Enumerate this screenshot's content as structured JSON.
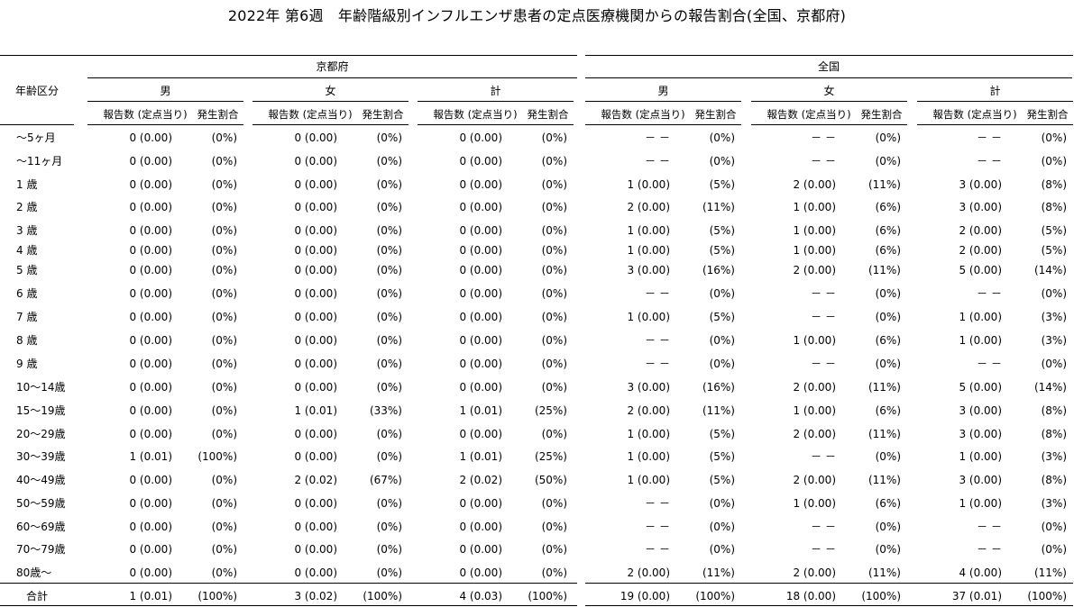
{
  "title": "2022年 第6週　年齢階級別インフルエンザ患者の定点医療機関からの報告割合(全国、京都府)",
  "header": {
    "age_label": "年齢区分",
    "regions": [
      "京都府",
      "全国"
    ],
    "sexes": [
      "男",
      "女",
      "計"
    ],
    "count_label": "報告数 (定点当り)",
    "ratio_label": "発生割合"
  },
  "rows": [
    {
      "age": "～5ヶ月",
      "kyoto": [
        [
          "0 (0.00)",
          "(0%)"
        ],
        [
          "0 (0.00)",
          "(0%)"
        ],
        [
          "0 (0.00)",
          "(0%)"
        ]
      ],
      "national": [
        [
          "－ －",
          "(0%)"
        ],
        [
          "－ －",
          "(0%)"
        ],
        [
          "－ －",
          "(0%)"
        ]
      ]
    },
    {
      "age": "～11ヶ月",
      "kyoto": [
        [
          "0 (0.00)",
          "(0%)"
        ],
        [
          "0 (0.00)",
          "(0%)"
        ],
        [
          "0 (0.00)",
          "(0%)"
        ]
      ],
      "national": [
        [
          "－ －",
          "(0%)"
        ],
        [
          "－ －",
          "(0%)"
        ],
        [
          "－ －",
          "(0%)"
        ]
      ]
    },
    {
      "age": "1 歳",
      "kyoto": [
        [
          "0 (0.00)",
          "(0%)"
        ],
        [
          "0 (0.00)",
          "(0%)"
        ],
        [
          "0 (0.00)",
          "(0%)"
        ]
      ],
      "national": [
        [
          "1 (0.00)",
          "(5%)"
        ],
        [
          "2 (0.00)",
          "(11%)"
        ],
        [
          "3 (0.00)",
          "(8%)"
        ]
      ]
    },
    {
      "age": "2 歳",
      "kyoto": [
        [
          "0 (0.00)",
          "(0%)"
        ],
        [
          "0 (0.00)",
          "(0%)"
        ],
        [
          "0 (0.00)",
          "(0%)"
        ]
      ],
      "national": [
        [
          "2 (0.00)",
          "(11%)"
        ],
        [
          "1 (0.00)",
          "(6%)"
        ],
        [
          "3 (0.00)",
          "(8%)"
        ]
      ]
    },
    {
      "age": "3 歳",
      "kyoto": [
        [
          "0 (0.00)",
          "(0%)"
        ],
        [
          "0 (0.00)",
          "(0%)"
        ],
        [
          "0 (0.00)",
          "(0%)"
        ]
      ],
      "national": [
        [
          "1 (0.00)",
          "(5%)"
        ],
        [
          "1 (0.00)",
          "(6%)"
        ],
        [
          "2 (0.00)",
          "(5%)"
        ]
      ]
    },
    {
      "age": "4 歳",
      "kyoto": [
        [
          "0 (0.00)",
          "(0%)"
        ],
        [
          "0 (0.00)",
          "(0%)"
        ],
        [
          "0 (0.00)",
          "(0%)"
        ]
      ],
      "national": [
        [
          "1 (0.00)",
          "(5%)"
        ],
        [
          "1 (0.00)",
          "(6%)"
        ],
        [
          "2 (0.00)",
          "(5%)"
        ]
      ]
    },
    {
      "age": "5 歳",
      "kyoto": [
        [
          "0 (0.00)",
          "(0%)"
        ],
        [
          "0 (0.00)",
          "(0%)"
        ],
        [
          "0 (0.00)",
          "(0%)"
        ]
      ],
      "national": [
        [
          "3 (0.00)",
          "(16%)"
        ],
        [
          "2 (0.00)",
          "(11%)"
        ],
        [
          "5 (0.00)",
          "(14%)"
        ]
      ]
    },
    {
      "age": "6 歳",
      "kyoto": [
        [
          "0 (0.00)",
          "(0%)"
        ],
        [
          "0 (0.00)",
          "(0%)"
        ],
        [
          "0 (0.00)",
          "(0%)"
        ]
      ],
      "national": [
        [
          "－ －",
          "(0%)"
        ],
        [
          "－ －",
          "(0%)"
        ],
        [
          "－ －",
          "(0%)"
        ]
      ]
    },
    {
      "age": "7 歳",
      "kyoto": [
        [
          "0 (0.00)",
          "(0%)"
        ],
        [
          "0 (0.00)",
          "(0%)"
        ],
        [
          "0 (0.00)",
          "(0%)"
        ]
      ],
      "national": [
        [
          "1 (0.00)",
          "(5%)"
        ],
        [
          "－ －",
          "(0%)"
        ],
        [
          "1 (0.00)",
          "(3%)"
        ]
      ]
    },
    {
      "age": "8 歳",
      "kyoto": [
        [
          "0 (0.00)",
          "(0%)"
        ],
        [
          "0 (0.00)",
          "(0%)"
        ],
        [
          "0 (0.00)",
          "(0%)"
        ]
      ],
      "national": [
        [
          "－ －",
          "(0%)"
        ],
        [
          "1 (0.00)",
          "(6%)"
        ],
        [
          "1 (0.00)",
          "(3%)"
        ]
      ]
    },
    {
      "age": "9 歳",
      "kyoto": [
        [
          "0 (0.00)",
          "(0%)"
        ],
        [
          "0 (0.00)",
          "(0%)"
        ],
        [
          "0 (0.00)",
          "(0%)"
        ]
      ],
      "national": [
        [
          "－ －",
          "(0%)"
        ],
        [
          "－ －",
          "(0%)"
        ],
        [
          "－ －",
          "(0%)"
        ]
      ]
    },
    {
      "age": "10～14歳",
      "kyoto": [
        [
          "0 (0.00)",
          "(0%)"
        ],
        [
          "0 (0.00)",
          "(0%)"
        ],
        [
          "0 (0.00)",
          "(0%)"
        ]
      ],
      "national": [
        [
          "3 (0.00)",
          "(16%)"
        ],
        [
          "2 (0.00)",
          "(11%)"
        ],
        [
          "5 (0.00)",
          "(14%)"
        ]
      ]
    },
    {
      "age": "15～19歳",
      "kyoto": [
        [
          "0 (0.00)",
          "(0%)"
        ],
        [
          "1 (0.01)",
          "(33%)"
        ],
        [
          "1 (0.01)",
          "(25%)"
        ]
      ],
      "national": [
        [
          "2 (0.00)",
          "(11%)"
        ],
        [
          "1 (0.00)",
          "(6%)"
        ],
        [
          "3 (0.00)",
          "(8%)"
        ]
      ]
    },
    {
      "age": "20～29歳",
      "kyoto": [
        [
          "0 (0.00)",
          "(0%)"
        ],
        [
          "0 (0.00)",
          "(0%)"
        ],
        [
          "0 (0.00)",
          "(0%)"
        ]
      ],
      "national": [
        [
          "1 (0.00)",
          "(5%)"
        ],
        [
          "2 (0.00)",
          "(11%)"
        ],
        [
          "3 (0.00)",
          "(8%)"
        ]
      ]
    },
    {
      "age": "30～39歳",
      "kyoto": [
        [
          "1 (0.01)",
          "(100%)"
        ],
        [
          "0 (0.00)",
          "(0%)"
        ],
        [
          "1 (0.01)",
          "(25%)"
        ]
      ],
      "national": [
        [
          "1 (0.00)",
          "(5%)"
        ],
        [
          "－ －",
          "(0%)"
        ],
        [
          "1 (0.00)",
          "(3%)"
        ]
      ]
    },
    {
      "age": "40～49歳",
      "kyoto": [
        [
          "0 (0.00)",
          "(0%)"
        ],
        [
          "2 (0.02)",
          "(67%)"
        ],
        [
          "2 (0.02)",
          "(50%)"
        ]
      ],
      "national": [
        [
          "1 (0.00)",
          "(5%)"
        ],
        [
          "2 (0.00)",
          "(11%)"
        ],
        [
          "3 (0.00)",
          "(8%)"
        ]
      ]
    },
    {
      "age": "50～59歳",
      "kyoto": [
        [
          "0 (0.00)",
          "(0%)"
        ],
        [
          "0 (0.00)",
          "(0%)"
        ],
        [
          "0 (0.00)",
          "(0%)"
        ]
      ],
      "national": [
        [
          "－ －",
          "(0%)"
        ],
        [
          "1 (0.00)",
          "(6%)"
        ],
        [
          "1 (0.00)",
          "(3%)"
        ]
      ]
    },
    {
      "age": "60～69歳",
      "kyoto": [
        [
          "0 (0.00)",
          "(0%)"
        ],
        [
          "0 (0.00)",
          "(0%)"
        ],
        [
          "0 (0.00)",
          "(0%)"
        ]
      ],
      "national": [
        [
          "－ －",
          "(0%)"
        ],
        [
          "－ －",
          "(0%)"
        ],
        [
          "－ －",
          "(0%)"
        ]
      ]
    },
    {
      "age": "70～79歳",
      "kyoto": [
        [
          "0 (0.00)",
          "(0%)"
        ],
        [
          "0 (0.00)",
          "(0%)"
        ],
        [
          "0 (0.00)",
          "(0%)"
        ]
      ],
      "national": [
        [
          "－ －",
          "(0%)"
        ],
        [
          "－ －",
          "(0%)"
        ],
        [
          "－ －",
          "(0%)"
        ]
      ]
    },
    {
      "age": "80歳～",
      "kyoto": [
        [
          "0 (0.00)",
          "(0%)"
        ],
        [
          "0 (0.00)",
          "(0%)"
        ],
        [
          "0 (0.00)",
          "(0%)"
        ]
      ],
      "national": [
        [
          "2 (0.00)",
          "(11%)"
        ],
        [
          "2 (0.00)",
          "(11%)"
        ],
        [
          "4 (0.00)",
          "(11%)"
        ]
      ]
    }
  ],
  "total": {
    "age": "合計",
    "kyoto": [
      [
        "1 (0.01)",
        "(100%)"
      ],
      [
        "3 (0.02)",
        "(100%)"
      ],
      [
        "4 (0.03)",
        "(100%)"
      ]
    ],
    "national": [
      [
        "19 (0.00)",
        "(100%)"
      ],
      [
        "18 (0.00)",
        "(100%)"
      ],
      [
        "37 (0.01)",
        "(100%)"
      ]
    ]
  }
}
